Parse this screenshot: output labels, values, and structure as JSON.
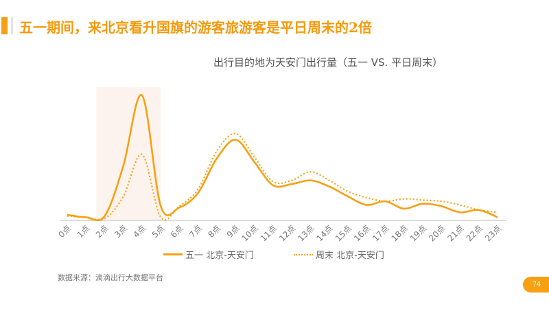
{
  "header": {
    "title": "五一期间，来北京看升国旗的游客旅游客是平日周末的2倍"
  },
  "source": "数据来源：滴滴出行大数据平台",
  "page_number": "74",
  "colors": {
    "accent": "#f7a012",
    "highlight": "#fdf3ee"
  },
  "chart_data": {
    "type": "line",
    "title": "出行目的地为天安门出行量（五一 VS. 平日周末）",
    "categories": [
      "0点",
      "1点",
      "2点",
      "3点",
      "4点",
      "5点",
      "6点",
      "7点",
      "8点",
      "9点",
      "10点",
      "11点",
      "12点",
      "13点",
      "14点",
      "15点",
      "16点",
      "17点",
      "18点",
      "19点",
      "20点",
      "21点",
      "22点",
      "23点"
    ],
    "series": [
      {
        "name": "五一 北京-天安门",
        "style": "solid",
        "values": [
          4,
          2,
          3,
          44,
          101,
          11,
          10,
          22,
          50,
          65,
          47,
          28,
          29,
          32,
          27,
          19,
          12,
          15,
          9,
          13,
          11,
          6,
          8,
          2
        ]
      },
      {
        "name": "周末 北京-天安门",
        "style": "dotted",
        "values": [
          3,
          2,
          1,
          19,
          53,
          2,
          11,
          25,
          56,
          70,
          51,
          31,
          32,
          39,
          32,
          23,
          18,
          15,
          17,
          16,
          15,
          12,
          8,
          6
        ]
      }
    ],
    "highlight_range": [
      "2点",
      "5点"
    ],
    "ylim": [
      0,
      105
    ],
    "grid": false,
    "legend_position": "bottom"
  }
}
